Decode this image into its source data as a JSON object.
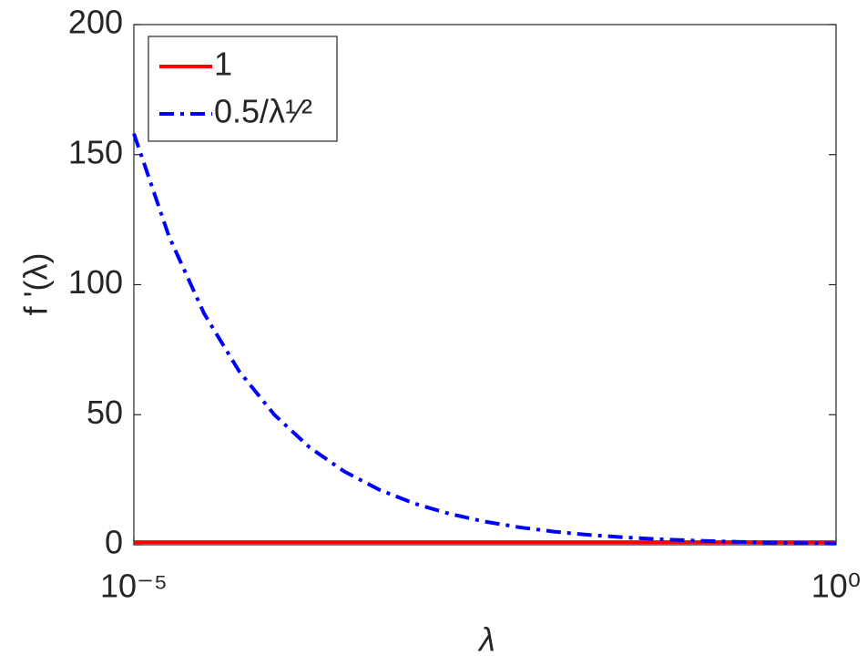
{
  "chart_data": {
    "type": "line",
    "xlabel": "λ",
    "ylabel": "f '(λ)",
    "x": [
      1e-05,
      1.778e-05,
      3.162e-05,
      5.623e-05,
      0.0001,
      0.0001778,
      0.0003162,
      0.0005623,
      0.001,
      0.001778,
      0.003162,
      0.005623,
      0.01,
      0.01778,
      0.03162,
      0.05623,
      0.1,
      0.1778,
      0.3162,
      0.5623,
      1
    ],
    "series": [
      {
        "name": "1",
        "color": "#ff0000",
        "style": "solid",
        "values": [
          1,
          1,
          1,
          1,
          1,
          1,
          1,
          1,
          1,
          1,
          1,
          1,
          1,
          1,
          1,
          1,
          1,
          1,
          1,
          1,
          1
        ]
      },
      {
        "name": "0.5/λ¹⁄²",
        "color": "#0000ff",
        "style": "dashdot",
        "values": [
          158.11,
          118.57,
          88.91,
          66.67,
          50,
          37.49,
          28.12,
          21.09,
          15.81,
          11.86,
          8.89,
          6.67,
          5,
          3.75,
          2.81,
          2.11,
          1.58,
          1.19,
          0.89,
          0.67,
          0.5
        ]
      }
    ],
    "xscale": "log",
    "xlim": [
      1e-05,
      1
    ],
    "xticks": [
      {
        "value": 1e-05,
        "label": "10⁻⁵"
      },
      {
        "value": 1,
        "label": "10⁰"
      }
    ],
    "ylim": [
      0,
      200
    ],
    "yticks": [
      0,
      50,
      100,
      150,
      200
    ],
    "legend": "upper left"
  }
}
